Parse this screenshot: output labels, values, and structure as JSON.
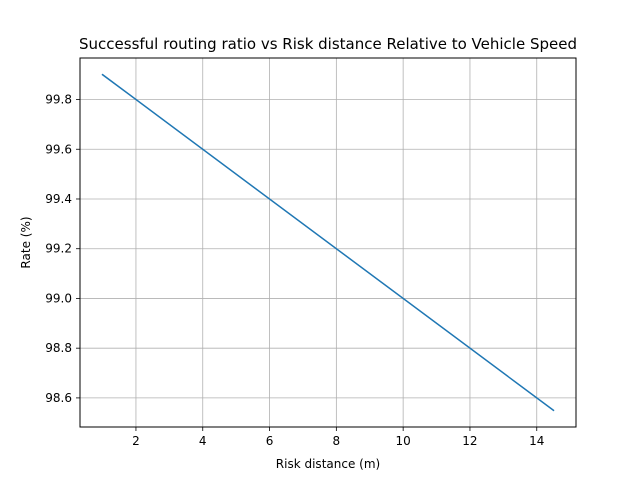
{
  "chart_data": {
    "type": "line",
    "title": "Successful routing ratio vs Risk distance Relative to Vehicle Speed",
    "xlabel": "Risk distance (m)",
    "ylabel": "Rate (%)",
    "xlim": [
      0.325,
      15.175
    ],
    "ylim": [
      98.483,
      99.967
    ],
    "xticks": [
      2,
      4,
      6,
      8,
      10,
      12,
      14
    ],
    "xtick_labels": [
      "2",
      "4",
      "6",
      "8",
      "10",
      "12",
      "14"
    ],
    "yticks": [
      98.6,
      98.8,
      99.0,
      99.2,
      99.4,
      99.6,
      99.8
    ],
    "ytick_labels": [
      "98.6",
      "98.8",
      "99.0",
      "99.2",
      "99.4",
      "99.6",
      "99.8"
    ],
    "grid": true,
    "series": [
      {
        "color": "#1f77b4",
        "x": [
          1.0,
          14.5
        ],
        "y": [
          99.9,
          98.55
        ]
      }
    ]
  }
}
